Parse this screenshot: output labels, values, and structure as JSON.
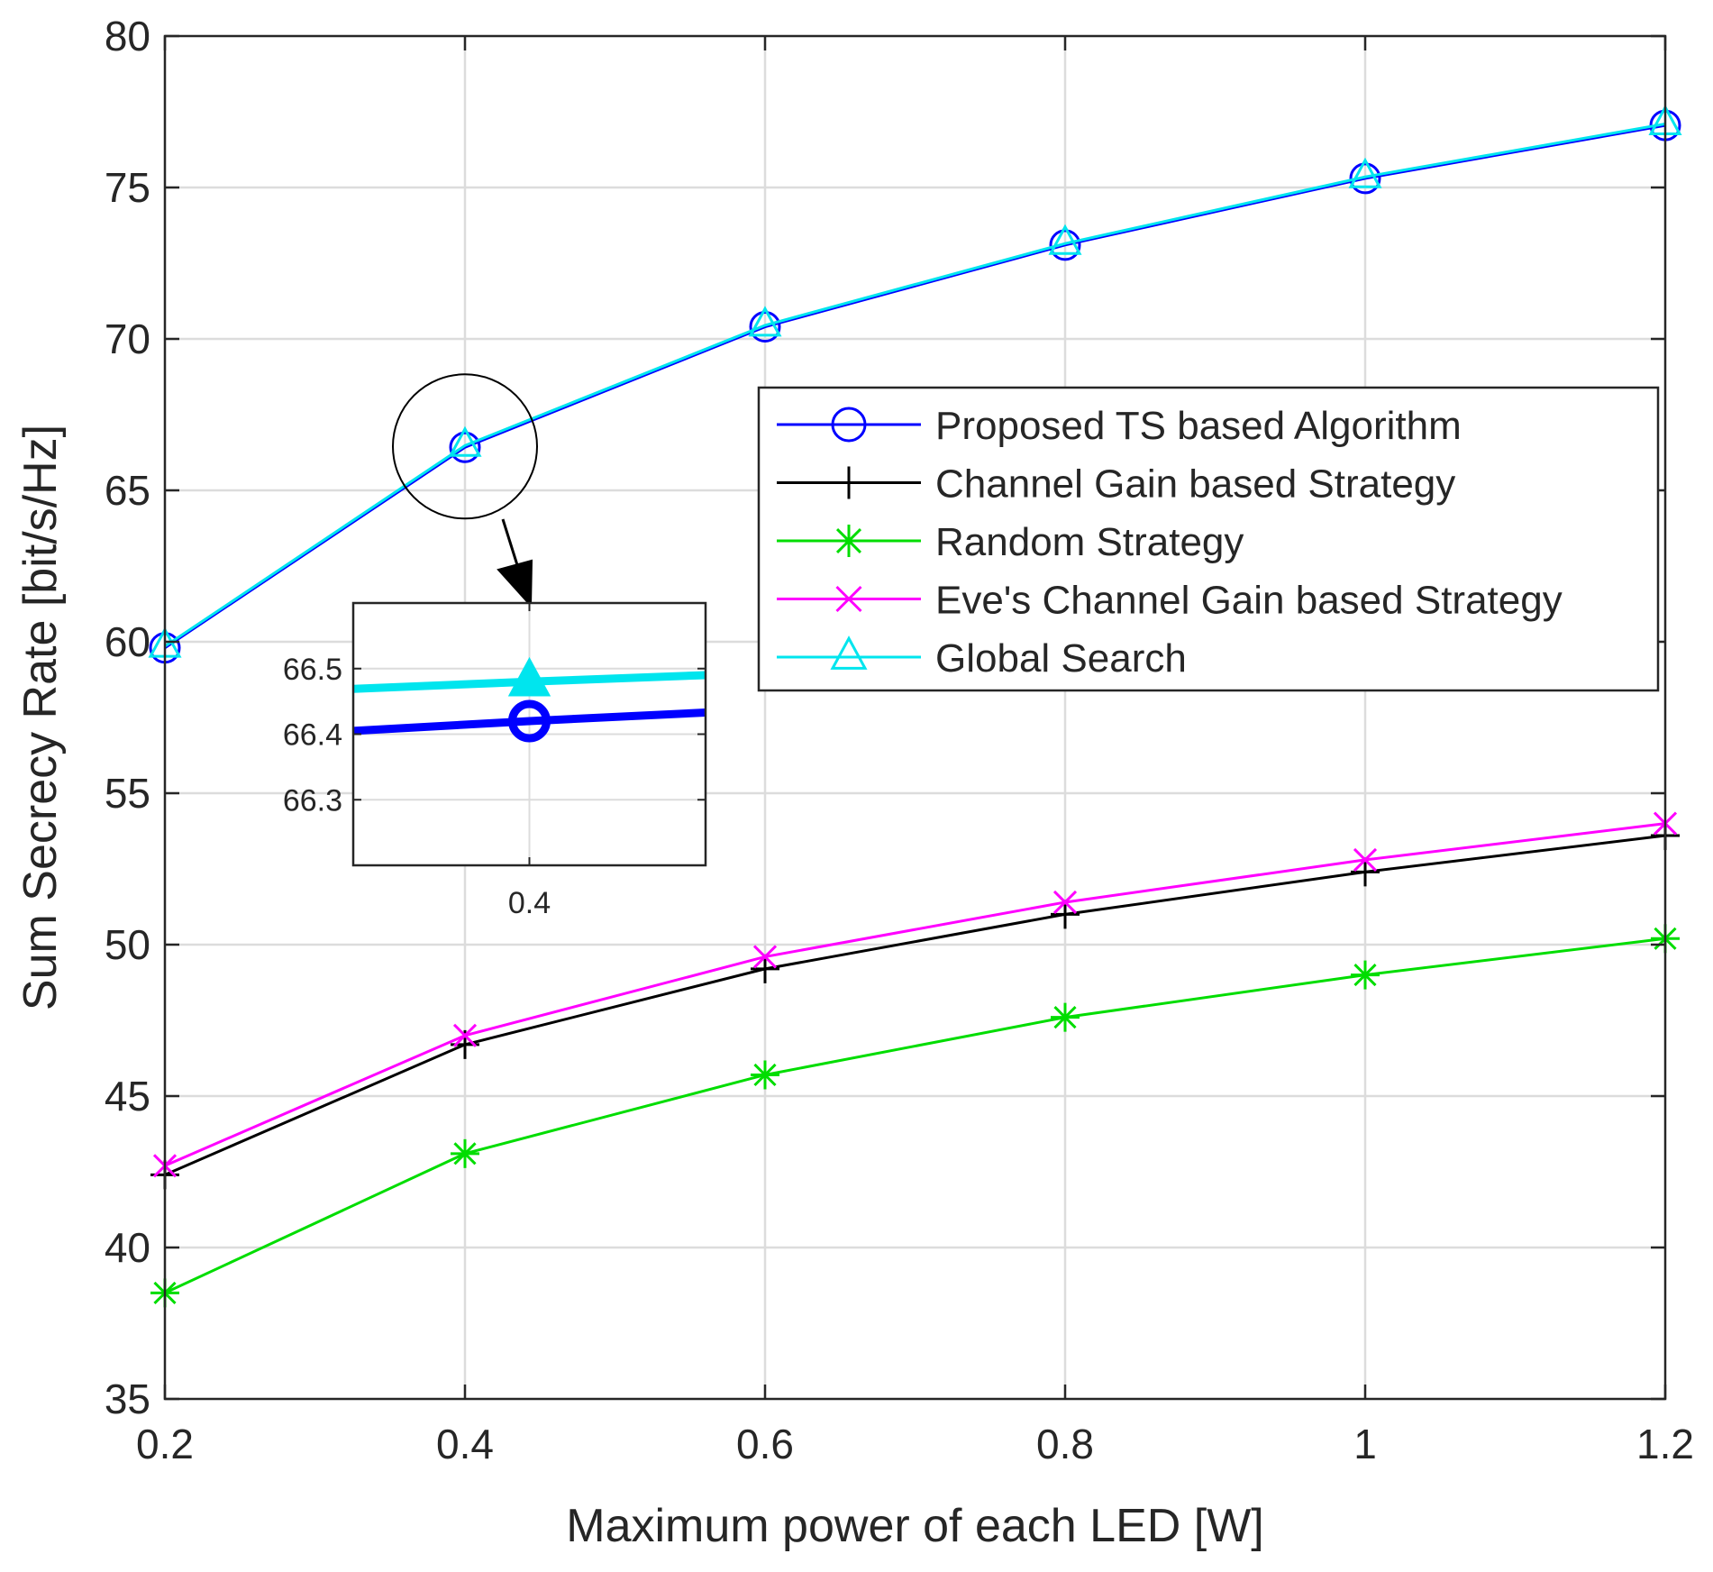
{
  "chart_data": {
    "type": "line",
    "title": "",
    "xlabel": "Maximum power of each LED [W]",
    "ylabel": "Sum Secrecy Rate [bit/s/Hz]",
    "xlim": [
      0.2,
      1.2
    ],
    "ylim": [
      35,
      80
    ],
    "xticks": [
      0.2,
      0.4,
      0.6,
      0.8,
      1,
      1.2
    ],
    "xtick_labels": [
      "0.2",
      "0.4",
      "0.6",
      "0.8",
      "1",
      "1.2"
    ],
    "yticks": [
      35,
      40,
      45,
      50,
      55,
      60,
      65,
      70,
      75,
      80
    ],
    "ytick_labels": [
      "35",
      "40",
      "45",
      "50",
      "55",
      "60",
      "65",
      "70",
      "75",
      "80"
    ],
    "grid": true,
    "legend_position": "upper-right",
    "x": [
      0.2,
      0.4,
      0.6,
      0.8,
      1.0,
      1.2
    ],
    "series": [
      {
        "name": "Proposed TS based Algorithm",
        "color": "#0000ff",
        "marker": "circle",
        "values": [
          59.8,
          66.42,
          70.4,
          73.1,
          75.3,
          77.05
        ]
      },
      {
        "name": "Channel Gain based Strategy",
        "color": "#000000",
        "marker": "plus",
        "values": [
          42.4,
          46.7,
          49.2,
          51.0,
          52.4,
          53.6
        ]
      },
      {
        "name": "Random Strategy",
        "color": "#00dd00",
        "marker": "star",
        "values": [
          38.5,
          43.1,
          45.7,
          47.6,
          49.0,
          50.2
        ]
      },
      {
        "name": "Eve's Channel Gain based Strategy",
        "color": "#ff00ff",
        "marker": "x",
        "values": [
          42.7,
          47.0,
          49.6,
          51.4,
          52.8,
          54.0
        ]
      },
      {
        "name": "Global Search",
        "color": "#00e5ee",
        "marker": "triangle",
        "values": [
          59.85,
          66.48,
          70.45,
          73.15,
          75.35,
          77.1
        ]
      }
    ],
    "inset": {
      "xlim": [
        0.35,
        0.45
      ],
      "ylim": [
        66.2,
        66.6
      ],
      "xticks": [
        0.4
      ],
      "xtick_labels": [
        "0.4"
      ],
      "yticks": [
        66.3,
        66.4,
        66.5
      ],
      "ytick_labels": [
        "66.3",
        "66.4",
        "66.5"
      ],
      "series": [
        {
          "name": "Proposed TS based Algorithm",
          "color": "#0000ff",
          "marker": "circle",
          "x": [
            0.35,
            0.4,
            0.45
          ],
          "values": [
            66.405,
            66.42,
            66.433
          ]
        },
        {
          "name": "Global Search",
          "color": "#00e5ee",
          "marker": "triangle",
          "x": [
            0.35,
            0.4,
            0.45
          ],
          "values": [
            66.469,
            66.48,
            66.49
          ]
        }
      ]
    }
  }
}
